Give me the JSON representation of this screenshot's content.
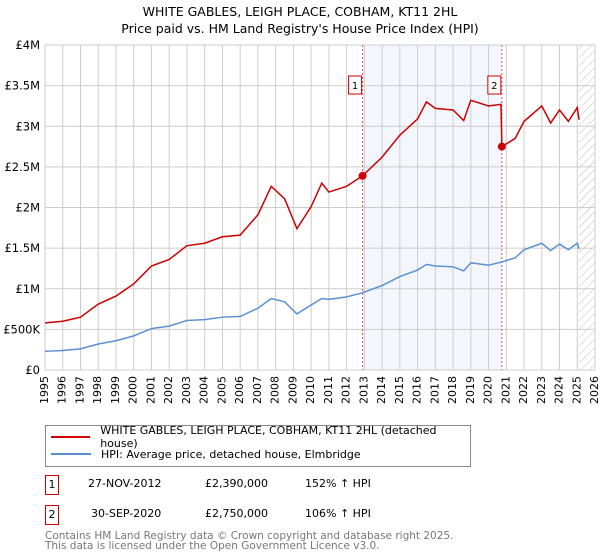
{
  "chart_data": {
    "type": "line",
    "title": "WHITE GABLES, LEIGH PLACE, COBHAM, KT11 2HL",
    "subtitle": "Price paid vs. HM Land Registry's House Price Index (HPI)",
    "xlim": [
      1995,
      2026
    ],
    "ylim": [
      0,
      4000000
    ],
    "y_ticks": [
      {
        "v": 0,
        "l": "£0"
      },
      {
        "v": 500000,
        "l": "£500K"
      },
      {
        "v": 1000000,
        "l": "£1M"
      },
      {
        "v": 1500000,
        "l": "£1.5M"
      },
      {
        "v": 2000000,
        "l": "£2M"
      },
      {
        "v": 2500000,
        "l": "£2.5M"
      },
      {
        "v": 3000000,
        "l": "£3M"
      },
      {
        "v": 3500000,
        "l": "£3.5M"
      },
      {
        "v": 4000000,
        "l": "£4M"
      }
    ],
    "x_ticks": [
      1995,
      1996,
      1997,
      1998,
      1999,
      2000,
      2001,
      2002,
      2003,
      2004,
      2005,
      2006,
      2007,
      2008,
      2009,
      2010,
      2011,
      2012,
      2013,
      2014,
      2015,
      2016,
      2017,
      2018,
      2019,
      2020,
      2021,
      2022,
      2023,
      2024,
      2025,
      2026
    ],
    "grid": true,
    "shaded_range": [
      2012.9,
      2020.75
    ],
    "forecast_hatch_from": 2025.1,
    "series": [
      {
        "name": "WHITE GABLES, LEIGH PLACE, COBHAM, KT11 2HL (detached house)",
        "color": "#cc0000",
        "points": [
          [
            1995,
            580000
          ],
          [
            1996,
            600000
          ],
          [
            1997,
            650000
          ],
          [
            1998,
            810000
          ],
          [
            1999,
            910000
          ],
          [
            2000,
            1060000
          ],
          [
            2001,
            1280000
          ],
          [
            2002,
            1360000
          ],
          [
            2003,
            1530000
          ],
          [
            2004,
            1560000
          ],
          [
            2005,
            1640000
          ],
          [
            2006,
            1660000
          ],
          [
            2007,
            1910000
          ],
          [
            2007.75,
            2260000
          ],
          [
            2008.5,
            2110000
          ],
          [
            2009.2,
            1740000
          ],
          [
            2010,
            2010000
          ],
          [
            2010.6,
            2300000
          ],
          [
            2011,
            2190000
          ],
          [
            2012,
            2260000
          ],
          [
            2012.9,
            2390000
          ],
          [
            2014,
            2620000
          ],
          [
            2015,
            2890000
          ],
          [
            2016,
            3090000
          ],
          [
            2016.5,
            3300000
          ],
          [
            2017,
            3220000
          ],
          [
            2018,
            3200000
          ],
          [
            2018.6,
            3070000
          ],
          [
            2019,
            3320000
          ],
          [
            2020,
            3250000
          ],
          [
            2020.7,
            3270000
          ],
          [
            2020.75,
            2750000
          ],
          [
            2021.5,
            2850000
          ],
          [
            2022,
            3060000
          ],
          [
            2023,
            3250000
          ],
          [
            2023.5,
            3040000
          ],
          [
            2024,
            3200000
          ],
          [
            2024.5,
            3060000
          ],
          [
            2025,
            3230000
          ],
          [
            2025.1,
            3080000
          ]
        ]
      },
      {
        "name": "HPI: Average price, detached house, Elmbridge",
        "color": "#5b8fd4",
        "points": [
          [
            1995,
            230000
          ],
          [
            1996,
            240000
          ],
          [
            1997,
            260000
          ],
          [
            1998,
            320000
          ],
          [
            1999,
            360000
          ],
          [
            2000,
            420000
          ],
          [
            2001,
            510000
          ],
          [
            2002,
            540000
          ],
          [
            2003,
            610000
          ],
          [
            2004,
            620000
          ],
          [
            2005,
            650000
          ],
          [
            2006,
            660000
          ],
          [
            2007,
            760000
          ],
          [
            2007.75,
            880000
          ],
          [
            2008.5,
            840000
          ],
          [
            2009.2,
            690000
          ],
          [
            2010,
            800000
          ],
          [
            2010.6,
            880000
          ],
          [
            2011,
            870000
          ],
          [
            2012,
            900000
          ],
          [
            2012.9,
            950000
          ],
          [
            2014,
            1040000
          ],
          [
            2015,
            1150000
          ],
          [
            2016,
            1230000
          ],
          [
            2016.5,
            1300000
          ],
          [
            2017,
            1280000
          ],
          [
            2018,
            1270000
          ],
          [
            2018.6,
            1220000
          ],
          [
            2019,
            1320000
          ],
          [
            2020,
            1290000
          ],
          [
            2020.75,
            1330000
          ],
          [
            2021.5,
            1380000
          ],
          [
            2022,
            1480000
          ],
          [
            2023,
            1560000
          ],
          [
            2023.5,
            1470000
          ],
          [
            2024,
            1550000
          ],
          [
            2024.5,
            1480000
          ],
          [
            2025,
            1560000
          ],
          [
            2025.1,
            1490000
          ]
        ]
      }
    ],
    "sales": [
      {
        "n": "1",
        "x": 2012.9,
        "y": 2390000
      },
      {
        "n": "2",
        "x": 2020.75,
        "y": 2750000
      }
    ]
  },
  "sales_table": [
    {
      "n": "1",
      "date": "27-NOV-2012",
      "price": "£2,390,000",
      "hpi": "152% ↑ HPI"
    },
    {
      "n": "2",
      "date": "30-SEP-2020",
      "price": "£2,750,000",
      "hpi": "106% ↑ HPI"
    }
  ],
  "footer": {
    "line1": "Contains HM Land Registry data © Crown copyright and database right 2025.",
    "line2": "This data is licensed under the Open Government Licence v3.0."
  }
}
